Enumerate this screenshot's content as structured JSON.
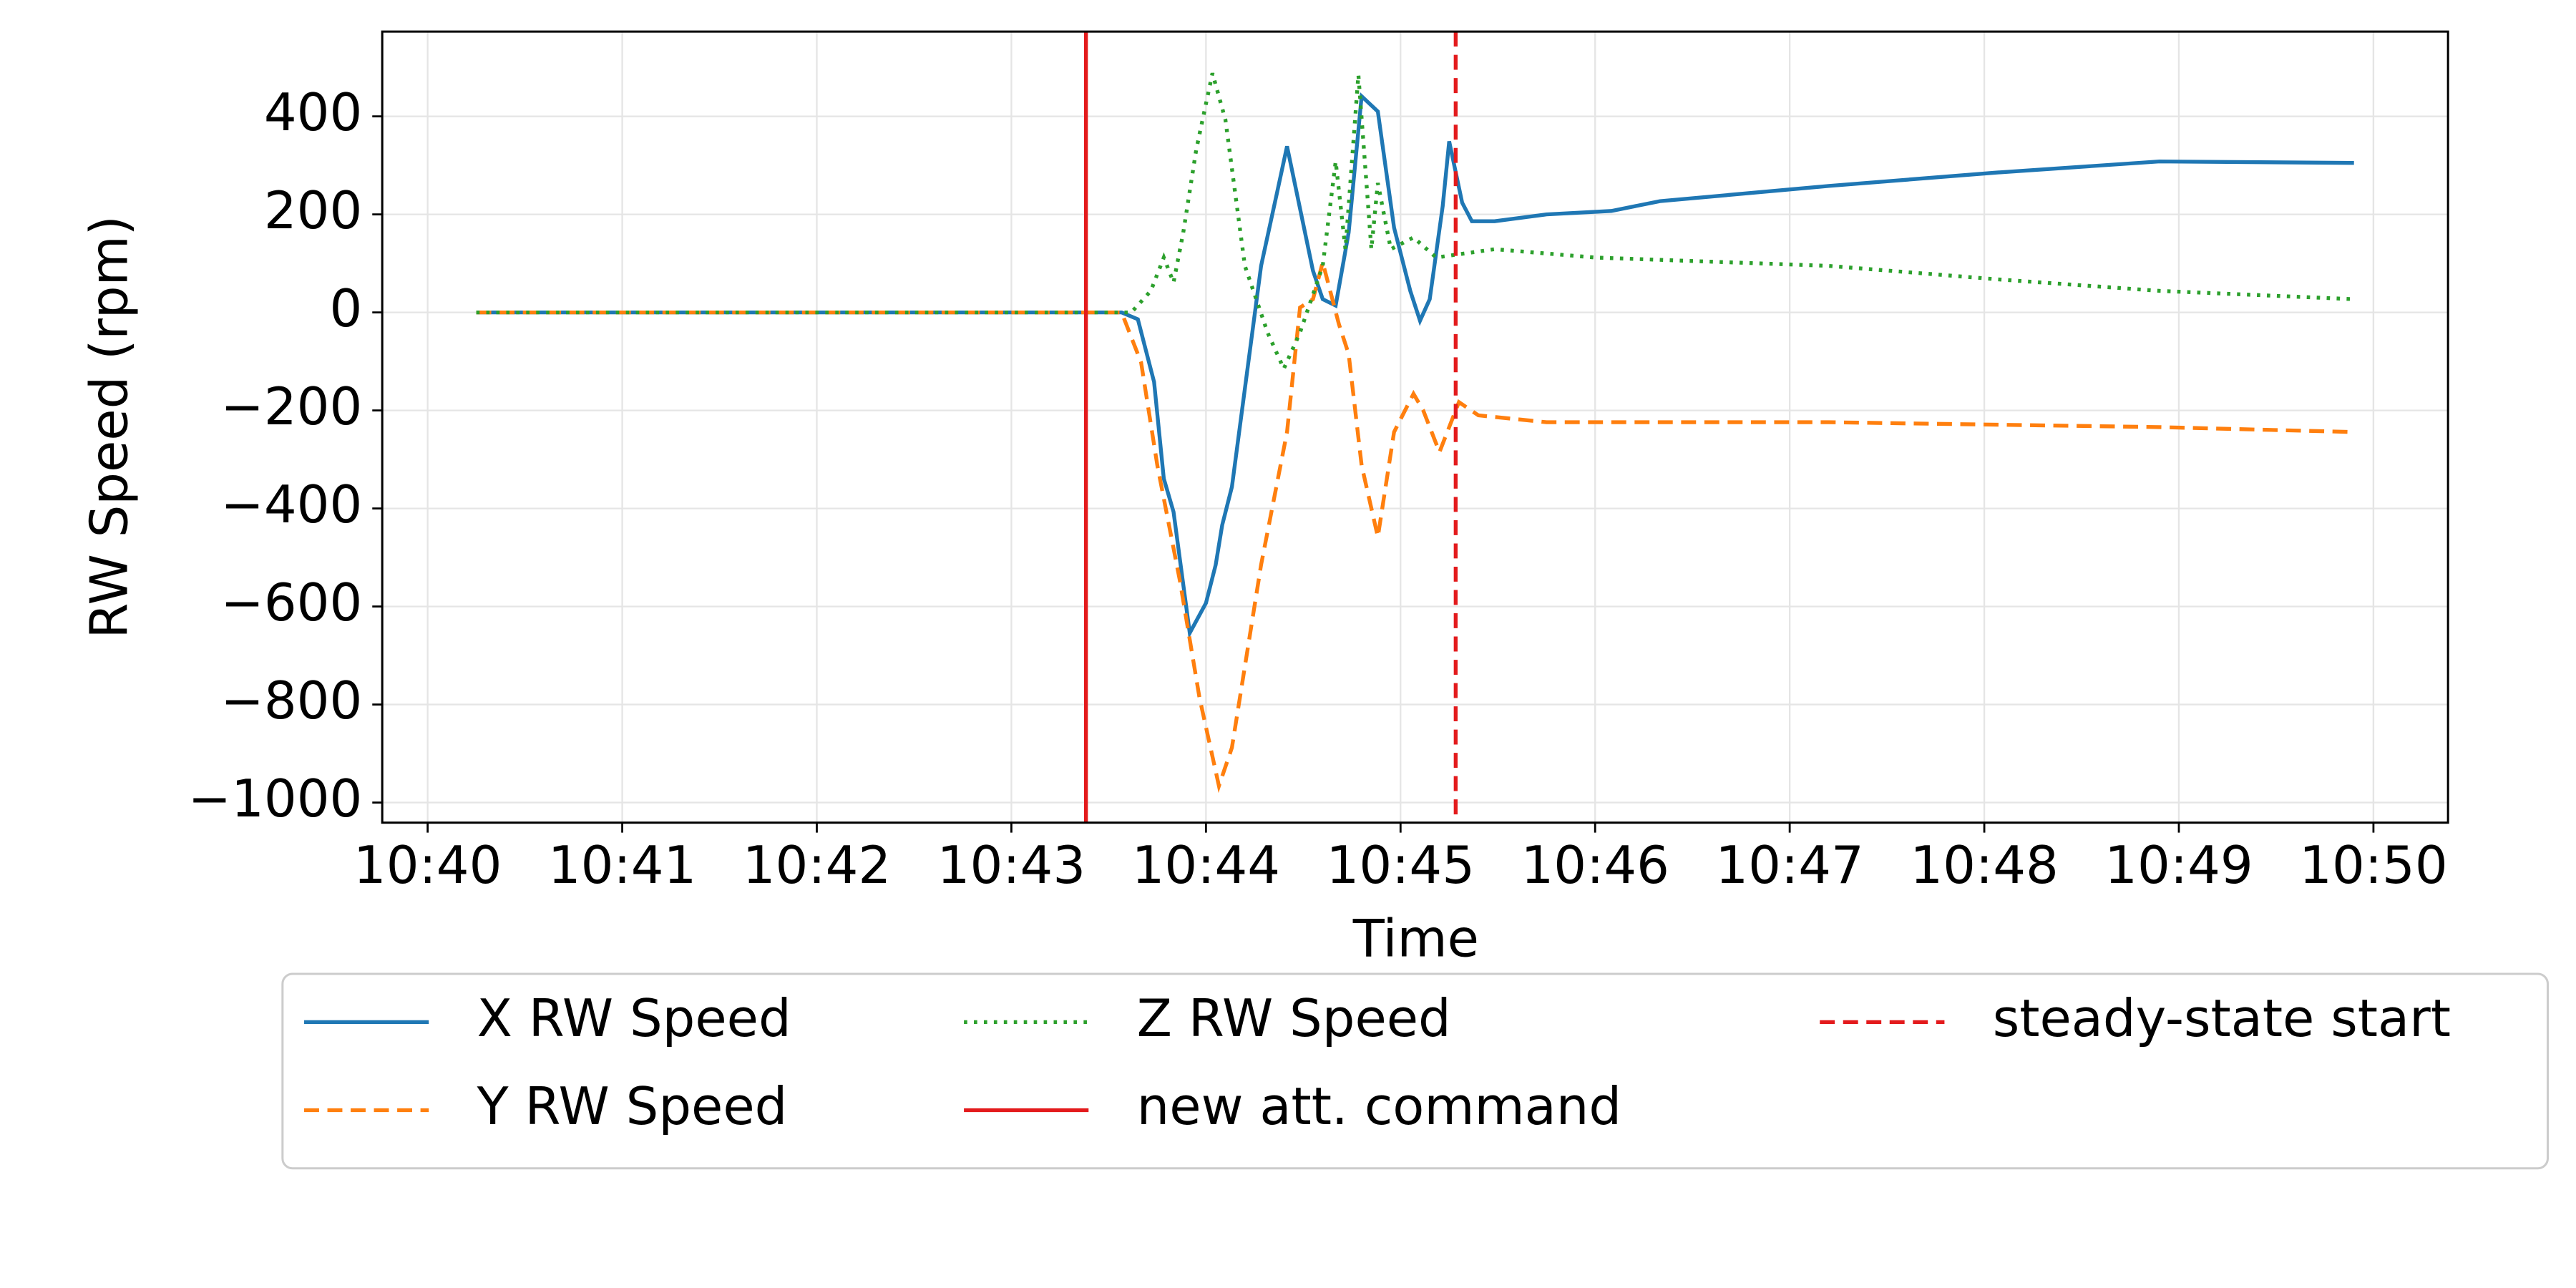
{
  "chart_data": {
    "type": "line",
    "xlabel": "Time",
    "ylabel": "RW Speed (rpm)",
    "xlim": [
      "10:39:46",
      "10:50:23"
    ],
    "xticks": [
      "10:40",
      "10:41",
      "10:42",
      "10:43",
      "10:44",
      "10:45",
      "10:46",
      "10:47",
      "10:48",
      "10:49",
      "10:50"
    ],
    "ylim": [
      -1041,
      573
    ],
    "yticks": [
      {
        "value": -1000,
        "label": "−1000"
      },
      {
        "value": -800,
        "label": "−800"
      },
      {
        "value": -600,
        "label": "−600"
      },
      {
        "value": -400,
        "label": "−400"
      },
      {
        "value": -200,
        "label": "−200"
      },
      0,
      200,
      400
    ],
    "grid": true,
    "series": [
      {
        "name": "X RW Speed",
        "color": "#1f77b4",
        "dash": "solid",
        "x": [
          "10:40:15",
          "10:43:34",
          "10:43:39",
          "10:43:44",
          "10:43:47",
          "10:43:50",
          "10:43:55",
          "10:44:00",
          "10:44:03",
          "10:44:05",
          "10:44:08",
          "10:44:17",
          "10:44:22",
          "10:44:25",
          "10:44:33",
          "10:44:36",
          "10:44:40",
          "10:44:44",
          "10:44:48",
          "10:44:53",
          "10:44:58",
          "10:45:03",
          "10:45:06",
          "10:45:09",
          "10:45:13",
          "10:45:15",
          "10:45:19",
          "10:45:22",
          "10:45:29",
          "10:45:45",
          "10:46:05",
          "10:46:20",
          "10:47:12",
          "10:48:03",
          "10:48:54",
          "10:49:54"
        ],
        "values": [
          0,
          0,
          -14,
          -142,
          -339,
          -407,
          -654,
          -593,
          -515,
          -434,
          -356,
          95,
          247,
          339,
          85,
          27,
          14,
          163,
          441,
          410,
          173,
          44,
          -17,
          27,
          217,
          349,
          224,
          186,
          186,
          200,
          207,
          227,
          258,
          285,
          308,
          305
        ]
      },
      {
        "name": "Y RW Speed",
        "color": "#ff7f0e",
        "dash": "dashed",
        "x": [
          "10:40:15",
          "10:43:34",
          "10:43:40",
          "10:43:45",
          "10:43:52",
          "10:43:58",
          "10:44:04",
          "10:44:08",
          "10:44:17",
          "10:44:25",
          "10:44:29",
          "10:44:33",
          "10:44:36",
          "10:44:41",
          "10:44:44",
          "10:44:48",
          "10:44:53",
          "10:44:58",
          "10:45:04",
          "10:45:07",
          "10:45:12",
          "10:45:18",
          "10:45:24",
          "10:45:45",
          "10:47:12",
          "10:48:54",
          "10:49:54"
        ],
        "values": [
          0,
          0,
          -102,
          -312,
          -549,
          -786,
          -966,
          -888,
          -515,
          -244,
          10,
          27,
          102,
          -24,
          -85,
          -312,
          -458,
          -244,
          -166,
          -200,
          -285,
          -183,
          -210,
          -224,
          -224,
          -234,
          -244
        ]
      },
      {
        "name": "Z RW Speed",
        "color": "#2ca02c",
        "dash": "dotted",
        "x": [
          "10:40:15",
          "10:43:37",
          "10:43:43",
          "10:43:47",
          "10:43:50",
          "10:43:53",
          "10:43:57",
          "10:44:02",
          "10:44:06",
          "10:44:12",
          "10:44:19",
          "10:44:24",
          "10:44:29",
          "10:44:36",
          "10:44:40",
          "10:44:43",
          "10:44:47",
          "10:44:51",
          "10:44:53",
          "10:44:57",
          "10:45:04",
          "10:45:11",
          "10:45:29",
          "10:46:00",
          "10:47:12",
          "10:48:03",
          "10:48:54",
          "10:49:54"
        ],
        "values": [
          0,
          0,
          44,
          112,
          61,
          163,
          332,
          488,
          393,
          95,
          -41,
          -115,
          -41,
          95,
          308,
          129,
          485,
          129,
          264,
          129,
          153,
          112,
          129,
          112,
          95,
          68,
          44,
          27
        ]
      }
    ],
    "vlines": [
      {
        "name": "new att. command",
        "color": "#e31a1c",
        "dash": "solid",
        "x": "10:43:23"
      },
      {
        "name": "steady-state start",
        "color": "#e31a1c",
        "dash": "dashed",
        "x": "10:45:17"
      }
    ]
  }
}
